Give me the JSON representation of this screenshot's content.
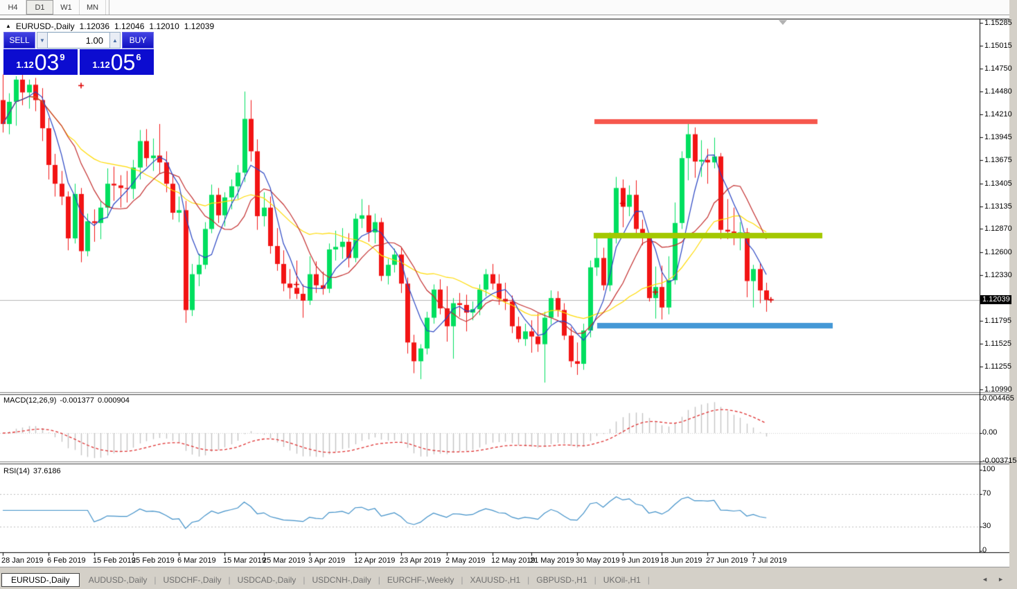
{
  "toolbar": {
    "timeframe_tabs": [
      "H4",
      "D1",
      "W1",
      "MN"
    ],
    "active_tab": "D1"
  },
  "chart_header": {
    "collapse_marker": "▲",
    "title": "EURUSD-,Daily",
    "ohlc": [
      "1.12036",
      "1.12046",
      "1.12010",
      "1.12039"
    ]
  },
  "trade_panel": {
    "sell_label": "SELL",
    "buy_label": "BUY",
    "volume": "1.00",
    "spin_down_glyph": "▼",
    "spin_up_glyph": "▲",
    "sell_price": {
      "prefix": "1.12",
      "big": "03",
      "sup": "9"
    },
    "buy_price": {
      "prefix": "1.12",
      "big": "05",
      "sup": "6"
    }
  },
  "price_axis": {
    "labels": [
      "1.15285",
      "1.15015",
      "1.14750",
      "1.14480",
      "1.14210",
      "1.13945",
      "1.13675",
      "1.13405",
      "1.13135",
      "1.12870",
      "1.12600",
      "1.12330",
      "1.11795",
      "1.11525",
      "1.11255",
      "1.10990"
    ],
    "current_price": "1.12039"
  },
  "macd_panel": {
    "name": "MACD",
    "params": "(12,26,9)",
    "value": "-0.001377",
    "signal_value": "0.000904",
    "axis_labels": [
      "0.004465",
      "0.00",
      "-0.003715"
    ],
    "fast": 12,
    "slow": 26,
    "signal": 9,
    "histogram_color": "#C4C4C4",
    "signal_color": "#DF2F2F"
  },
  "rsi_panel": {
    "name": "RSI",
    "params": "(14)",
    "value": "37.6186",
    "axis_labels": [
      "100",
      "70",
      "30",
      "0"
    ],
    "period": 14,
    "levels": [
      70,
      30
    ],
    "line_color": "#3E8FC8"
  },
  "date_axis": {
    "ticks": [
      {
        "label": "28 Jan 2019",
        "bar": 0
      },
      {
        "label": "6 Feb 2019",
        "bar": 7
      },
      {
        "label": "15 Feb 2019",
        "bar": 14
      },
      {
        "label": "25 Feb 2019",
        "bar": 20
      },
      {
        "label": "6 Mar 2019",
        "bar": 27
      },
      {
        "label": "15 Mar 2019",
        "bar": 34
      },
      {
        "label": "25 Mar 2019",
        "bar": 40
      },
      {
        "label": "3 Apr 2019",
        "bar": 47
      },
      {
        "label": "12 Apr 2019",
        "bar": 54
      },
      {
        "label": "23 Apr 2019",
        "bar": 61
      },
      {
        "label": "2 May 2019",
        "bar": 68
      },
      {
        "label": "12 May 2019",
        "bar": 75
      },
      {
        "label": "21 May 2019",
        "bar": 81
      },
      {
        "label": "30 May 2019",
        "bar": 88
      },
      {
        "label": "9 Jun 2019",
        "bar": 95
      },
      {
        "label": "18 Jun 2019",
        "bar": 101
      },
      {
        "label": "27 Jun 2019",
        "bar": 108
      },
      {
        "label": "7 Jul 2019",
        "bar": 115
      }
    ]
  },
  "bottom_tabs": {
    "active": "EURUSD-,Daily",
    "items": [
      "EURUSD-,Daily",
      "AUDUSD-,Daily",
      "USDCHF-,Daily",
      "USDCAD-,Daily",
      "USDCNH-,Daily",
      "EURCHF-,Weekly",
      "XAUUSD-,H1",
      "GBPUSD-,H1",
      "UKOil-,H1"
    ],
    "scroll_left_glyph": "◄",
    "scroll_right_glyph": "►"
  },
  "chart_data": {
    "type": "candlestick",
    "symbol": "EURUSD-",
    "timeframe": "Daily",
    "title": "EURUSD-,Daily",
    "ylim": [
      1.1097,
      1.1533
    ],
    "bull_color": "#00DF5F",
    "bear_color": "#F21414",
    "current_price": 1.12039,
    "ohlc": [
      [
        1.1438,
        1.1468,
        1.14,
        1.141
      ],
      [
        1.141,
        1.1446,
        1.1398,
        1.1436
      ],
      [
        1.1436,
        1.1466,
        1.1408,
        1.1462
      ],
      [
        1.1462,
        1.1468,
        1.1432,
        1.1447
      ],
      [
        1.1447,
        1.1462,
        1.1428,
        1.1456
      ],
      [
        1.1456,
        1.1464,
        1.1425,
        1.1438
      ],
      [
        1.1438,
        1.1452,
        1.139,
        1.1405
      ],
      [
        1.1405,
        1.1417,
        1.1345,
        1.1362
      ],
      [
        1.1362,
        1.1375,
        1.1325,
        1.134
      ],
      [
        1.134,
        1.1355,
        1.1315,
        1.1325
      ],
      [
        1.1325,
        1.1331,
        1.1262,
        1.1276
      ],
      [
        1.1276,
        1.134,
        1.127,
        1.1328
      ],
      [
        1.1328,
        1.1335,
        1.1248,
        1.1261
      ],
      [
        1.1261,
        1.1305,
        1.1255,
        1.1296
      ],
      [
        1.1296,
        1.131,
        1.1272,
        1.1294
      ],
      [
        1.1294,
        1.132,
        1.1275,
        1.1312
      ],
      [
        1.1312,
        1.1358,
        1.13,
        1.134
      ],
      [
        1.134,
        1.136,
        1.132,
        1.1338
      ],
      [
        1.1338,
        1.135,
        1.1312,
        1.1335
      ],
      [
        1.1335,
        1.1355,
        1.1318,
        1.1334
      ],
      [
        1.1334,
        1.1368,
        1.1322,
        1.1359
      ],
      [
        1.1359,
        1.1403,
        1.1345,
        1.139
      ],
      [
        1.139,
        1.1404,
        1.136,
        1.137
      ],
      [
        1.137,
        1.1393,
        1.1355,
        1.1373
      ],
      [
        1.1373,
        1.141,
        1.1352,
        1.1365
      ],
      [
        1.1365,
        1.1378,
        1.133,
        1.134
      ],
      [
        1.134,
        1.135,
        1.1298,
        1.1306
      ],
      [
        1.1306,
        1.1325,
        1.1295,
        1.1309
      ],
      [
        1.1309,
        1.132,
        1.1177,
        1.1192
      ],
      [
        1.1192,
        1.1246,
        1.1185,
        1.1234
      ],
      [
        1.1234,
        1.1258,
        1.122,
        1.1245
      ],
      [
        1.1245,
        1.1295,
        1.124,
        1.1287
      ],
      [
        1.1287,
        1.1339,
        1.1282,
        1.1327
      ],
      [
        1.1327,
        1.1335,
        1.1294,
        1.1303
      ],
      [
        1.1303,
        1.133,
        1.129,
        1.1324
      ],
      [
        1.1324,
        1.1345,
        1.131,
        1.1337
      ],
      [
        1.1337,
        1.1362,
        1.1322,
        1.1353
      ],
      [
        1.1353,
        1.1448,
        1.1342,
        1.1416
      ],
      [
        1.1416,
        1.1438,
        1.1366,
        1.1378
      ],
      [
        1.1378,
        1.1392,
        1.1286,
        1.1302
      ],
      [
        1.1302,
        1.133,
        1.129,
        1.1312
      ],
      [
        1.1312,
        1.1325,
        1.1258,
        1.1267
      ],
      [
        1.1267,
        1.1288,
        1.1238,
        1.1246
      ],
      [
        1.1246,
        1.1262,
        1.1214,
        1.1223
      ],
      [
        1.1223,
        1.124,
        1.1205,
        1.1218
      ],
      [
        1.1218,
        1.125,
        1.1205,
        1.1211
      ],
      [
        1.1211,
        1.1222,
        1.1183,
        1.1203
      ],
      [
        1.1203,
        1.1255,
        1.1198,
        1.1234
      ],
      [
        1.1234,
        1.1249,
        1.1212,
        1.1221
      ],
      [
        1.1221,
        1.1237,
        1.121,
        1.1217
      ],
      [
        1.1217,
        1.127,
        1.1212,
        1.1263
      ],
      [
        1.1263,
        1.1285,
        1.125,
        1.1266
      ],
      [
        1.1266,
        1.1288,
        1.1252,
        1.1272
      ],
      [
        1.1272,
        1.1282,
        1.1242,
        1.1253
      ],
      [
        1.1253,
        1.1305,
        1.1248,
        1.1299
      ],
      [
        1.1299,
        1.1322,
        1.1288,
        1.1303
      ],
      [
        1.1303,
        1.1315,
        1.1272,
        1.1283
      ],
      [
        1.1283,
        1.1305,
        1.127,
        1.1295
      ],
      [
        1.1295,
        1.13,
        1.1226,
        1.1232
      ],
      [
        1.1232,
        1.1252,
        1.1222,
        1.1245
      ],
      [
        1.1245,
        1.1264,
        1.1236,
        1.1257
      ],
      [
        1.1257,
        1.1265,
        1.1212,
        1.1223
      ],
      [
        1.1223,
        1.123,
        1.1141,
        1.1154
      ],
      [
        1.1154,
        1.1163,
        1.1118,
        1.1132
      ],
      [
        1.1132,
        1.1152,
        1.1111,
        1.1147
      ],
      [
        1.1147,
        1.119,
        1.114,
        1.1183
      ],
      [
        1.1183,
        1.1222,
        1.1176,
        1.1216
      ],
      [
        1.1216,
        1.1228,
        1.1187,
        1.1194
      ],
      [
        1.1194,
        1.122,
        1.1155,
        1.1173
      ],
      [
        1.1173,
        1.1206,
        1.1135,
        1.12
      ],
      [
        1.12,
        1.1212,
        1.1184,
        1.1198
      ],
      [
        1.1198,
        1.121,
        1.1167,
        1.1189
      ],
      [
        1.1189,
        1.1202,
        1.118,
        1.1193
      ],
      [
        1.1193,
        1.1222,
        1.1186,
        1.1216
      ],
      [
        1.1216,
        1.124,
        1.1208,
        1.1234
      ],
      [
        1.1234,
        1.1246,
        1.1216,
        1.1223
      ],
      [
        1.1223,
        1.1234,
        1.1198,
        1.1205
      ],
      [
        1.1205,
        1.1224,
        1.1192,
        1.1202
      ],
      [
        1.1202,
        1.1209,
        1.1165,
        1.1173
      ],
      [
        1.1173,
        1.1184,
        1.1154,
        1.1158
      ],
      [
        1.1158,
        1.1176,
        1.115,
        1.1167
      ],
      [
        1.1167,
        1.118,
        1.1142,
        1.1161
      ],
      [
        1.1161,
        1.1188,
        1.1143,
        1.1152
      ],
      [
        1.1152,
        1.119,
        1.1107,
        1.1183
      ],
      [
        1.1183,
        1.1215,
        1.1175,
        1.1206
      ],
      [
        1.1206,
        1.1214,
        1.1184,
        1.1192
      ],
      [
        1.1192,
        1.12,
        1.1157,
        1.1162
      ],
      [
        1.1162,
        1.1172,
        1.1125,
        1.1132
      ],
      [
        1.1132,
        1.1154,
        1.1116,
        1.1129
      ],
      [
        1.1129,
        1.1176,
        1.1122,
        1.1168
      ],
      [
        1.1168,
        1.125,
        1.116,
        1.1242
      ],
      [
        1.1242,
        1.1277,
        1.1232,
        1.1253
      ],
      [
        1.1253,
        1.1265,
        1.1215,
        1.1221
      ],
      [
        1.1221,
        1.1283,
        1.1214,
        1.1277
      ],
      [
        1.1277,
        1.1348,
        1.127,
        1.1335
      ],
      [
        1.1335,
        1.1345,
        1.1289,
        1.1313
      ],
      [
        1.1313,
        1.1338,
        1.1302,
        1.1327
      ],
      [
        1.1327,
        1.1344,
        1.1281,
        1.1287
      ],
      [
        1.1287,
        1.1298,
        1.1268,
        1.1276
      ],
      [
        1.1276,
        1.1282,
        1.1202,
        1.1206
      ],
      [
        1.1206,
        1.1243,
        1.1182,
        1.1219
      ],
      [
        1.1219,
        1.1244,
        1.1181,
        1.1195
      ],
      [
        1.1195,
        1.1255,
        1.1187,
        1.1227
      ],
      [
        1.1227,
        1.1318,
        1.1222,
        1.1294
      ],
      [
        1.1294,
        1.1378,
        1.1287,
        1.137
      ],
      [
        1.137,
        1.1412,
        1.1344,
        1.1398
      ],
      [
        1.1398,
        1.1406,
        1.1347,
        1.1366
      ],
      [
        1.1366,
        1.1391,
        1.1348,
        1.1368
      ],
      [
        1.1368,
        1.1381,
        1.134,
        1.1365
      ],
      [
        1.1365,
        1.1394,
        1.1358,
        1.1372
      ],
      [
        1.1372,
        1.1376,
        1.1275,
        1.1286
      ],
      [
        1.1286,
        1.1322,
        1.1275,
        1.1284
      ],
      [
        1.1284,
        1.1312,
        1.1268,
        1.1277
      ],
      [
        1.1277,
        1.1295,
        1.1262,
        1.1283
      ],
      [
        1.1283,
        1.1288,
        1.1207,
        1.1226
      ],
      [
        1.1226,
        1.1245,
        1.1195,
        1.124
      ],
      [
        1.124,
        1.1247,
        1.12,
        1.1215
      ],
      [
        1.1215,
        1.1224,
        1.119,
        1.12039
      ]
    ],
    "moving_averages": [
      {
        "name": "MA5",
        "period": 5,
        "color": "#2743C3"
      },
      {
        "name": "MA10",
        "period": 10,
        "color": "#C32B2B"
      },
      {
        "name": "MA20",
        "period": 20,
        "color": "#FFDB00"
      }
    ],
    "hlines": [
      {
        "name": "resistance-line",
        "price": 1.1413,
        "color": "#F6574D",
        "x1": 858,
        "x2": 1180,
        "thickness": 7
      },
      {
        "name": "middle-line",
        "price": 1.1279,
        "color": "#A3C800",
        "x1": 857,
        "x2": 1187,
        "thickness": 8
      },
      {
        "name": "support-line",
        "price": 1.1174,
        "color": "#4498D6",
        "x1": 862,
        "x2": 1202,
        "thickness": 8
      }
    ],
    "markers": [
      {
        "bar": 12,
        "price": 1.1455
      },
      {
        "bar": 45,
        "price": 1.1222
      },
      {
        "bar": 95,
        "price": 1.1317
      },
      {
        "bar": 100,
        "price": 1.1213
      },
      {
        "bar": 117.7,
        "price": 1.1204
      }
    ]
  }
}
